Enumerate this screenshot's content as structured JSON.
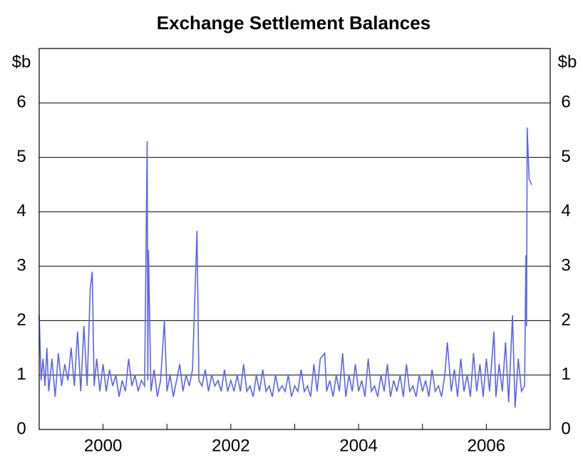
{
  "chart_data": {
    "type": "line",
    "title": "Exchange Settlement Balances",
    "y_unit": "$b",
    "y2_unit": "$b",
    "x": [
      1999.0,
      1999.03,
      1999.06,
      1999.09,
      1999.12,
      1999.15,
      1999.2,
      1999.25,
      1999.3,
      1999.35,
      1999.4,
      1999.45,
      1999.5,
      1999.55,
      1999.6,
      1999.65,
      1999.7,
      1999.75,
      1999.8,
      1999.83,
      1999.86,
      1999.9,
      1999.95,
      2000.0,
      2000.05,
      2000.1,
      2000.15,
      2000.2,
      2000.25,
      2000.3,
      2000.35,
      2000.4,
      2000.45,
      2000.5,
      2000.55,
      2000.6,
      2000.65,
      2000.69,
      2000.7,
      2000.71,
      2000.75,
      2000.8,
      2000.85,
      2000.9,
      2000.96,
      2001.0,
      2001.05,
      2001.1,
      2001.15,
      2001.2,
      2001.25,
      2001.3,
      2001.35,
      2001.4,
      2001.47,
      2001.5,
      2001.55,
      2001.6,
      2001.65,
      2001.7,
      2001.75,
      2001.8,
      2001.85,
      2001.9,
      2001.95,
      2002.0,
      2002.05,
      2002.1,
      2002.15,
      2002.2,
      2002.25,
      2002.3,
      2002.35,
      2002.4,
      2002.45,
      2002.5,
      2002.55,
      2002.6,
      2002.65,
      2002.7,
      2002.75,
      2002.8,
      2002.85,
      2002.9,
      2002.95,
      2003.0,
      2003.05,
      2003.1,
      2003.15,
      2003.2,
      2003.25,
      2003.3,
      2003.35,
      2003.4,
      2003.47,
      2003.5,
      2003.55,
      2003.6,
      2003.65,
      2003.7,
      2003.75,
      2003.8,
      2003.85,
      2003.9,
      2003.95,
      2004.0,
      2004.05,
      2004.1,
      2004.15,
      2004.2,
      2004.25,
      2004.3,
      2004.35,
      2004.4,
      2004.45,
      2004.5,
      2004.55,
      2004.6,
      2004.65,
      2004.7,
      2004.75,
      2004.8,
      2004.85,
      2004.9,
      2004.95,
      2005.0,
      2005.05,
      2005.1,
      2005.15,
      2005.2,
      2005.25,
      2005.3,
      2005.35,
      2005.39,
      2005.45,
      2005.5,
      2005.55,
      2005.6,
      2005.65,
      2005.7,
      2005.75,
      2005.8,
      2005.85,
      2005.9,
      2005.95,
      2006.0,
      2006.05,
      2006.12,
      2006.15,
      2006.2,
      2006.25,
      2006.3,
      2006.35,
      2006.41,
      2006.45,
      2006.5,
      2006.55,
      2006.6,
      2006.62,
      2006.63,
      2006.64,
      2006.67,
      2006.71
    ],
    "series": [
      {
        "color": "#5b63f0",
        "values": [
          2.1,
          0.9,
          1.3,
          0.8,
          1.5,
          0.7,
          1.3,
          0.6,
          1.4,
          0.8,
          1.2,
          0.9,
          1.5,
          0.8,
          1.8,
          0.7,
          1.9,
          0.8,
          2.6,
          2.9,
          0.8,
          1.3,
          0.7,
          1.2,
          0.7,
          1.1,
          0.8,
          1.0,
          0.6,
          0.9,
          0.7,
          1.3,
          0.8,
          1.0,
          0.7,
          0.9,
          0.8,
          5.3,
          0.9,
          3.3,
          0.7,
          1.1,
          0.6,
          0.9,
          2.0,
          0.7,
          1.0,
          0.6,
          0.9,
          1.2,
          0.7,
          1.0,
          0.8,
          1.1,
          3.65,
          0.9,
          0.8,
          1.1,
          0.7,
          1.0,
          0.8,
          0.9,
          0.7,
          1.1,
          0.7,
          0.9,
          0.7,
          1.0,
          0.7,
          1.2,
          0.7,
          0.8,
          0.6,
          1.0,
          0.7,
          1.1,
          0.7,
          0.8,
          0.6,
          1.0,
          0.7,
          0.8,
          0.7,
          1.0,
          0.6,
          0.8,
          0.7,
          1.1,
          0.7,
          0.8,
          0.6,
          1.2,
          0.7,
          1.3,
          1.4,
          0.7,
          0.9,
          0.6,
          1.0,
          0.7,
          1.4,
          0.6,
          1.0,
          0.7,
          1.2,
          0.7,
          0.9,
          0.6,
          1.3,
          0.7,
          0.8,
          0.6,
          1.0,
          0.7,
          1.2,
          0.6,
          0.9,
          0.7,
          1.0,
          0.6,
          1.2,
          0.7,
          0.8,
          0.6,
          1.0,
          0.7,
          0.9,
          0.6,
          1.1,
          0.7,
          0.8,
          0.6,
          1.0,
          1.6,
          0.7,
          1.1,
          0.6,
          1.3,
          0.7,
          1.0,
          0.6,
          1.4,
          0.7,
          1.2,
          0.6,
          1.3,
          0.7,
          1.8,
          0.6,
          1.2,
          0.7,
          1.6,
          0.5,
          2.1,
          0.4,
          1.3,
          0.7,
          0.8,
          3.2,
          1.9,
          5.55,
          4.6,
          4.5
        ]
      }
    ],
    "xlim": [
      1999,
      2007
    ],
    "xticks": [
      2000,
      2002,
      2004,
      2006
    ],
    "xminorticks": [
      2001,
      2003,
      2005
    ],
    "ylim": [
      0,
      7
    ],
    "yticks": [
      0,
      1,
      2,
      3,
      4,
      5,
      6
    ],
    "y2lim": [
      0,
      7
    ],
    "y2ticks": [
      0,
      1,
      2,
      3,
      4,
      5,
      6
    ],
    "grid": true
  }
}
